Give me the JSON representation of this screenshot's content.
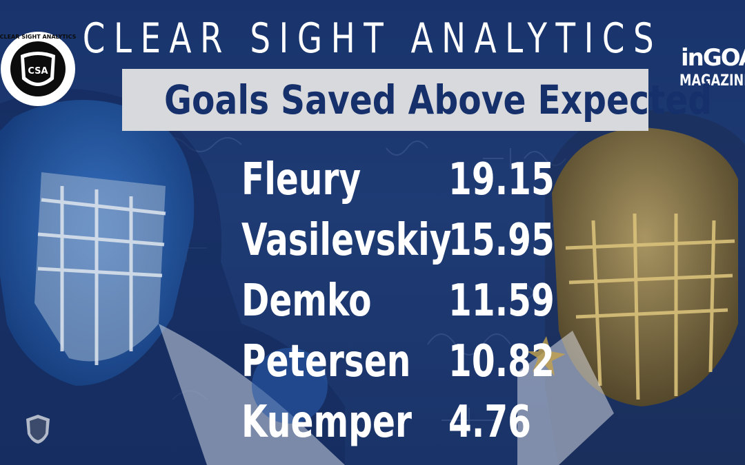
{
  "header": {
    "title": "CLEAR SIGHT ANALYTICS",
    "subtitle": "Goals Saved Above Expected"
  },
  "leaderboard": [
    {
      "name": "Fleury",
      "value": "19.15"
    },
    {
      "name": "Vasilevskiy",
      "value": "15.95"
    },
    {
      "name": "Demko",
      "value": "11.59"
    },
    {
      "name": "Petersen",
      "value": "10.82"
    },
    {
      "name": "Kuemper",
      "value": "4.76"
    }
  ],
  "logos": {
    "left": "CLEAR SIGHT ANALYTICS",
    "left_badge": "CSA",
    "right_top": "inGOAL",
    "right_bottom": "MAGAZINE"
  },
  "colors": {
    "background": "#1f3b74",
    "subtitle_box": "#d8d9dc",
    "subtitle_text": "#15306a",
    "text": "#ffffff"
  }
}
